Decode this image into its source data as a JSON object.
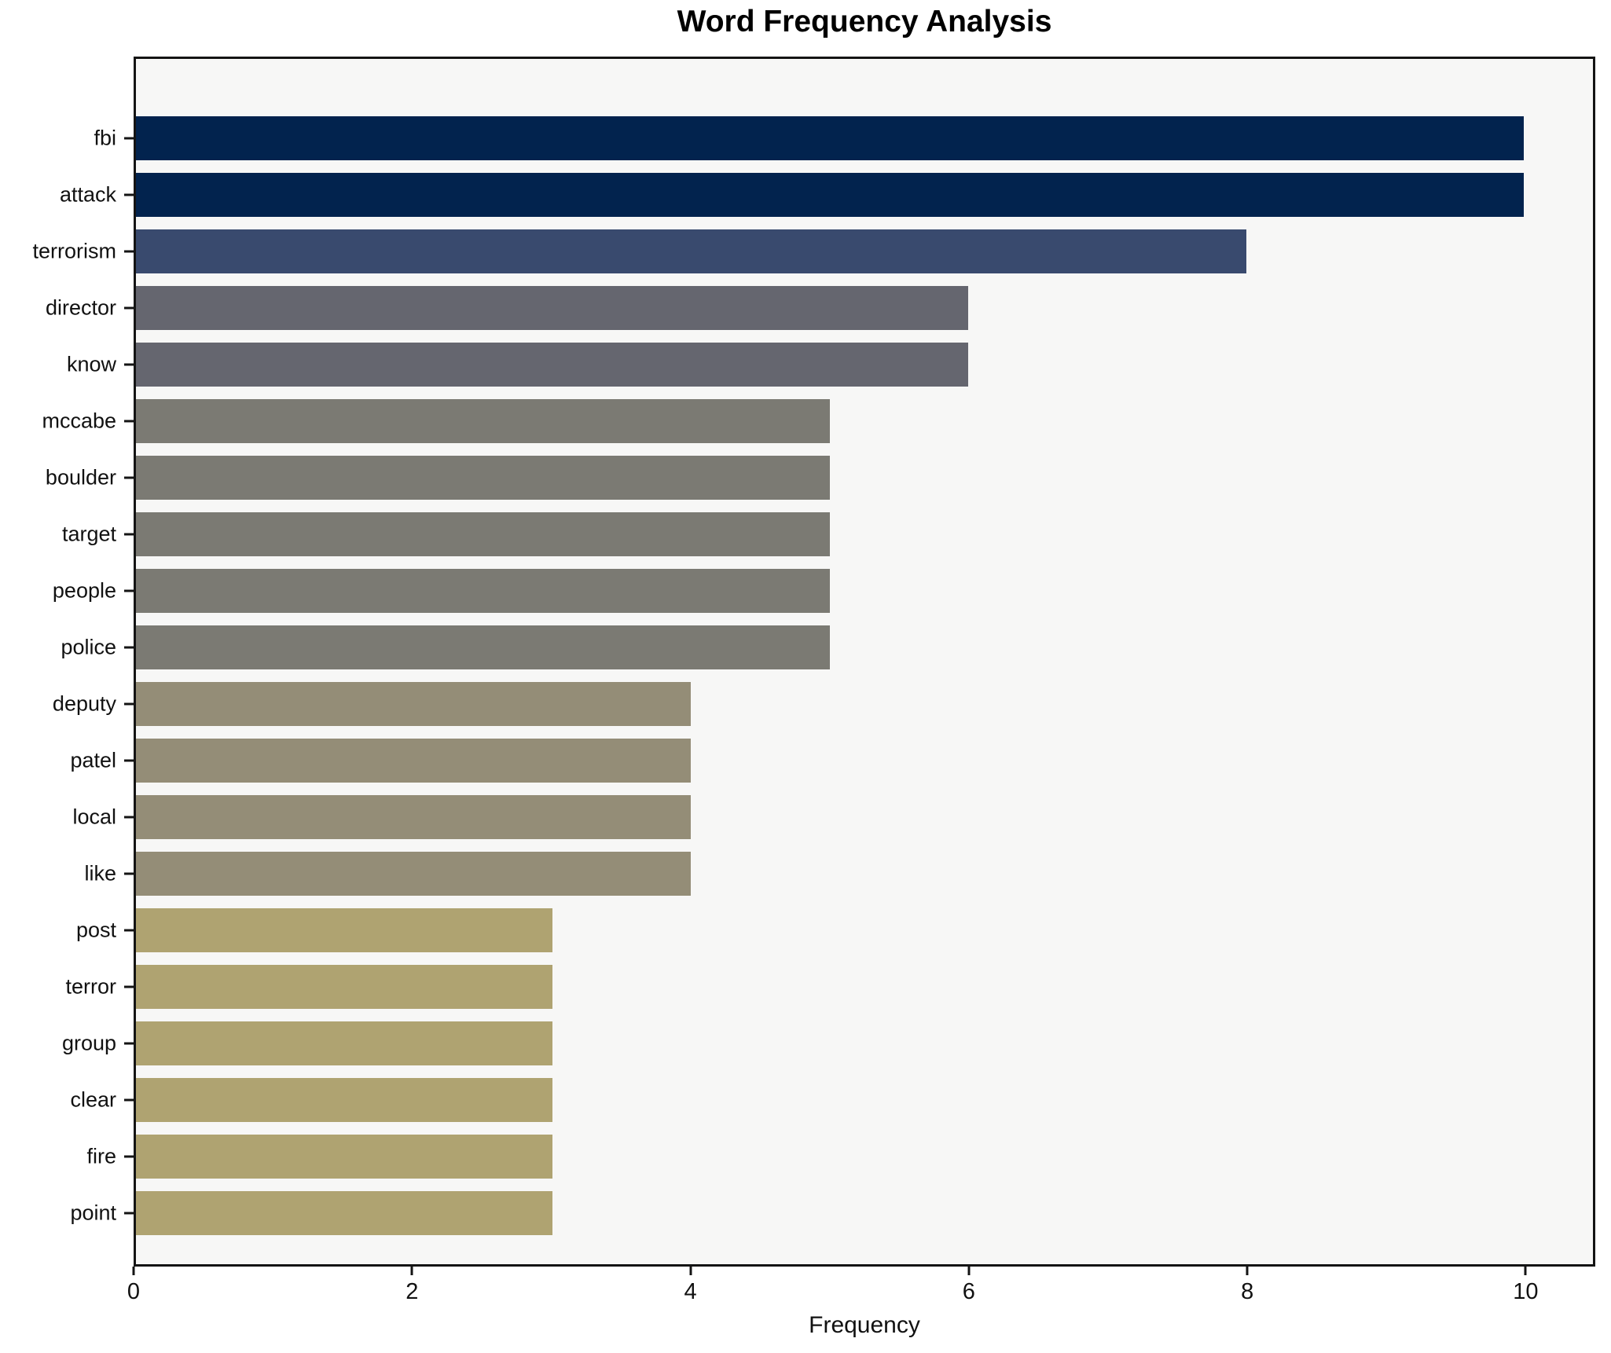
{
  "title": "Word Frequency Analysis",
  "chart_data": {
    "type": "bar",
    "orientation": "horizontal",
    "title": "Word Frequency Analysis",
    "xlabel": "Frequency",
    "ylabel": "",
    "categories": [
      "fbi",
      "attack",
      "terrorism",
      "director",
      "know",
      "mccabe",
      "boulder",
      "target",
      "people",
      "police",
      "deputy",
      "patel",
      "local",
      "like",
      "post",
      "terror",
      "group",
      "clear",
      "fire",
      "point"
    ],
    "values": [
      10,
      10,
      8,
      6,
      6,
      5,
      5,
      5,
      5,
      5,
      4,
      4,
      4,
      4,
      3,
      3,
      3,
      3,
      3,
      3
    ],
    "bar_colors": [
      "#02234e",
      "#02234e",
      "#394a6e",
      "#65666f",
      "#65666f",
      "#7b7a73",
      "#7b7a73",
      "#7b7a73",
      "#7b7a73",
      "#7b7a73",
      "#948d77",
      "#948d77",
      "#948d77",
      "#948d77",
      "#afa371",
      "#afa371",
      "#afa371",
      "#afa371",
      "#afa371",
      "#afa371"
    ],
    "xlim": [
      0,
      10.5
    ],
    "xticks": [
      0,
      2,
      4,
      6,
      8,
      10
    ],
    "grid": false,
    "legend": "none",
    "plot_background": "#f7f7f6",
    "figure_background": "#ffffff",
    "spine_color": "#141414",
    "bar_height_fraction": 0.79
  }
}
